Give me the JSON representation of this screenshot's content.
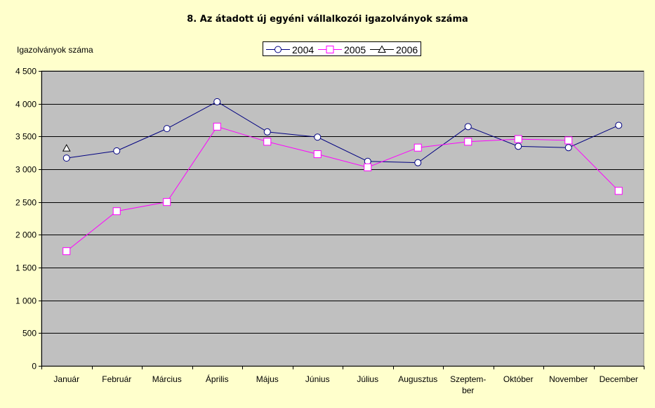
{
  "chart_data": {
    "type": "line",
    "title": "8. Az átadott új egyéni vállalkozói igazolványok száma",
    "ylabel": "Igazolványok száma",
    "xlabel": "",
    "ylim": [
      0,
      4500
    ],
    "yticks": [
      0,
      500,
      1000,
      1500,
      2000,
      2500,
      3000,
      3500,
      4000,
      4500
    ],
    "ytick_labels": [
      "0",
      "500",
      "1 000",
      "1 500",
      "2 000",
      "2 500",
      "3 000",
      "3 500",
      "4 000",
      "4 500"
    ],
    "categories": [
      [
        "Január"
      ],
      [
        "Február"
      ],
      [
        "Március"
      ],
      [
        "Április"
      ],
      [
        "Május"
      ],
      [
        "Június"
      ],
      [
        "Július"
      ],
      [
        "Augusztus"
      ],
      [
        "Szeptem-",
        "ber"
      ],
      [
        "Október"
      ],
      [
        "November"
      ],
      [
        "December"
      ]
    ],
    "grid": true,
    "legend_position": "top-center",
    "plot_background": "#C0C0C0",
    "page_background": "#FFFFCC",
    "series": [
      {
        "name": "2004",
        "color": "#000080",
        "marker": "circle",
        "values": [
          3170,
          3280,
          3620,
          4030,
          3570,
          3490,
          3120,
          3100,
          3650,
          3350,
          3330,
          3670
        ]
      },
      {
        "name": "2005",
        "color": "#FF00FF",
        "marker": "square",
        "values": [
          1750,
          2360,
          2500,
          3650,
          3420,
          3230,
          3030,
          3330,
          3420,
          3460,
          3440,
          2670
        ]
      },
      {
        "name": "2006",
        "color": "#000000",
        "marker": "triangle",
        "values": [
          3320,
          null,
          null,
          null,
          null,
          null,
          null,
          null,
          null,
          null,
          null,
          null
        ]
      }
    ]
  }
}
